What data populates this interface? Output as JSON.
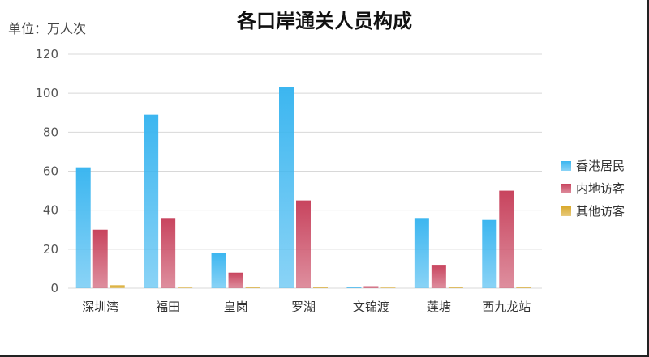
{
  "chart_data": {
    "type": "bar",
    "title": "各口岸通关人员构成",
    "unit_label": "单位：万人次",
    "ylim": [
      0,
      120
    ],
    "yticks": [
      0,
      20,
      40,
      60,
      80,
      100,
      120
    ],
    "grid": true,
    "legend_position": "right",
    "categories": [
      "深圳湾",
      "福田",
      "皇岗",
      "罗湖",
      "文锦渡",
      "莲塘",
      "西九龙站"
    ],
    "series": [
      {
        "name": "香港居民",
        "color": "#3cb6f0",
        "values": [
          62,
          89,
          18,
          103,
          0.5,
          36,
          35
        ]
      },
      {
        "name": "内地访客",
        "color": "#c8445e",
        "values": [
          30,
          36,
          8,
          45,
          1,
          12,
          50
        ]
      },
      {
        "name": "其他访客",
        "color": "#d9a92b",
        "values": [
          1.5,
          0.3,
          0.8,
          0.8,
          0.3,
          0.8,
          0.8
        ]
      }
    ]
  }
}
